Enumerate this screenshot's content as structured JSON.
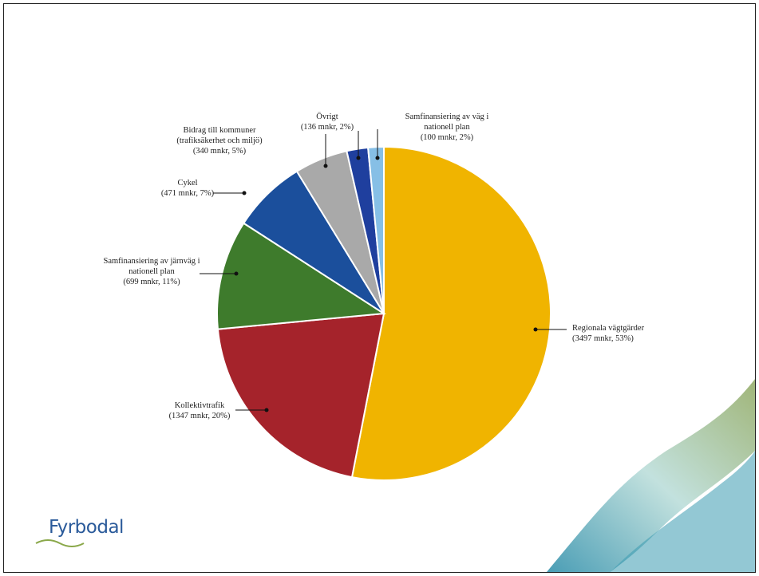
{
  "chart_data": {
    "type": "pie",
    "categories": [
      "Regionala vägtgärder",
      "Kollektivtrafik",
      "Samfinansiering av järnväg i nationell plan",
      "Cykel",
      "Bidrag till kommuner (trafiksäkerhet och miljö)",
      "Övrigt",
      "Samfinansiering av väg i nationell plan"
    ],
    "values": [
      3497,
      1347,
      699,
      471,
      340,
      136,
      100
    ],
    "value_labels": [
      "(3497 mnkr, 53%)",
      "(1347 mnkr, 20%)",
      "(699 mnkr, 11%)",
      "(471 mnkr, 7%)",
      "(340 mnkr, 5%)",
      "(136 mnkr, 2%)",
      "(100 mnkr, 2%)"
    ],
    "colors": [
      "#f0b400",
      "#a5232b",
      "#3e7b2c",
      "#1b4f9c",
      "#a9a9a9",
      "#1f3f9e",
      "#86bfe6"
    ]
  },
  "logo": "Fyrbodal"
}
